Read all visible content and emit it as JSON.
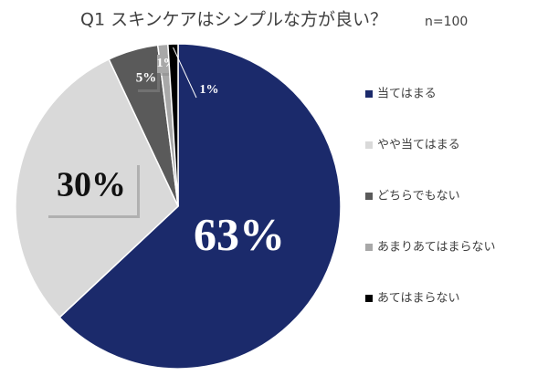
{
  "chart_data": {
    "type": "pie",
    "title": "Q1 スキンケアはシンプルな方が良い？",
    "subtitle": "n=100",
    "categories": [
      "当てはまる",
      "やや当てはまる",
      "どちらでもない",
      "あまりあてはまらない",
      "あてはまらない"
    ],
    "values": [
      63,
      30,
      5,
      1,
      1
    ],
    "value_labels": [
      "63%",
      "30%",
      "5%",
      "1%",
      "1%"
    ],
    "colors": [
      "#1b2a6b",
      "#d9d9d9",
      "#5a5a5a",
      "#a8a8a8",
      "#000000"
    ]
  }
}
